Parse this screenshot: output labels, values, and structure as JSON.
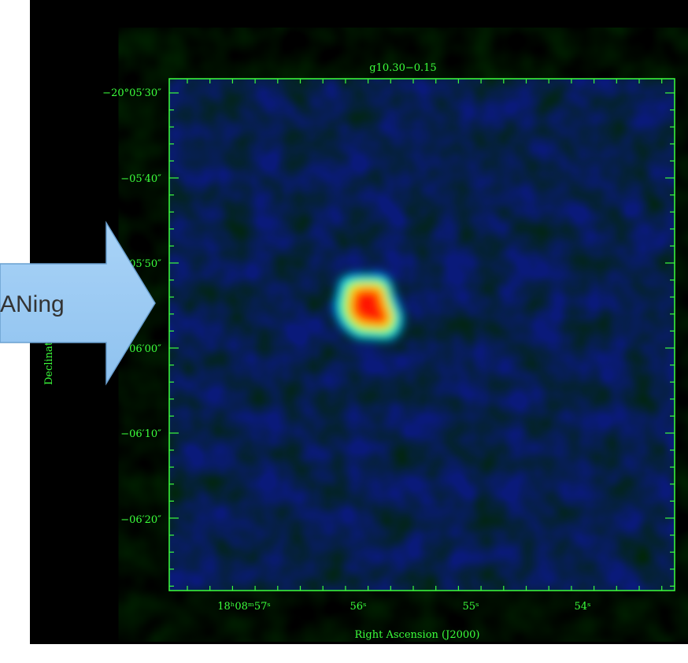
{
  "plot": {
    "title": "g10.30−0.15",
    "x_label": "Right Ascension (J2000)",
    "y_label": "Declination (J2000)",
    "x_tick_labels": [
      "18ʰ08ᵐ57ˢ",
      "56ˢ",
      "55ˢ",
      "54ˢ"
    ],
    "y_tick_labels": [
      "−20°05′30″",
      "−05′40″",
      "−05′50″",
      "−06′00″",
      "−06′10″",
      "−06′20″"
    ]
  },
  "arrow": {
    "label": "ANing"
  }
}
